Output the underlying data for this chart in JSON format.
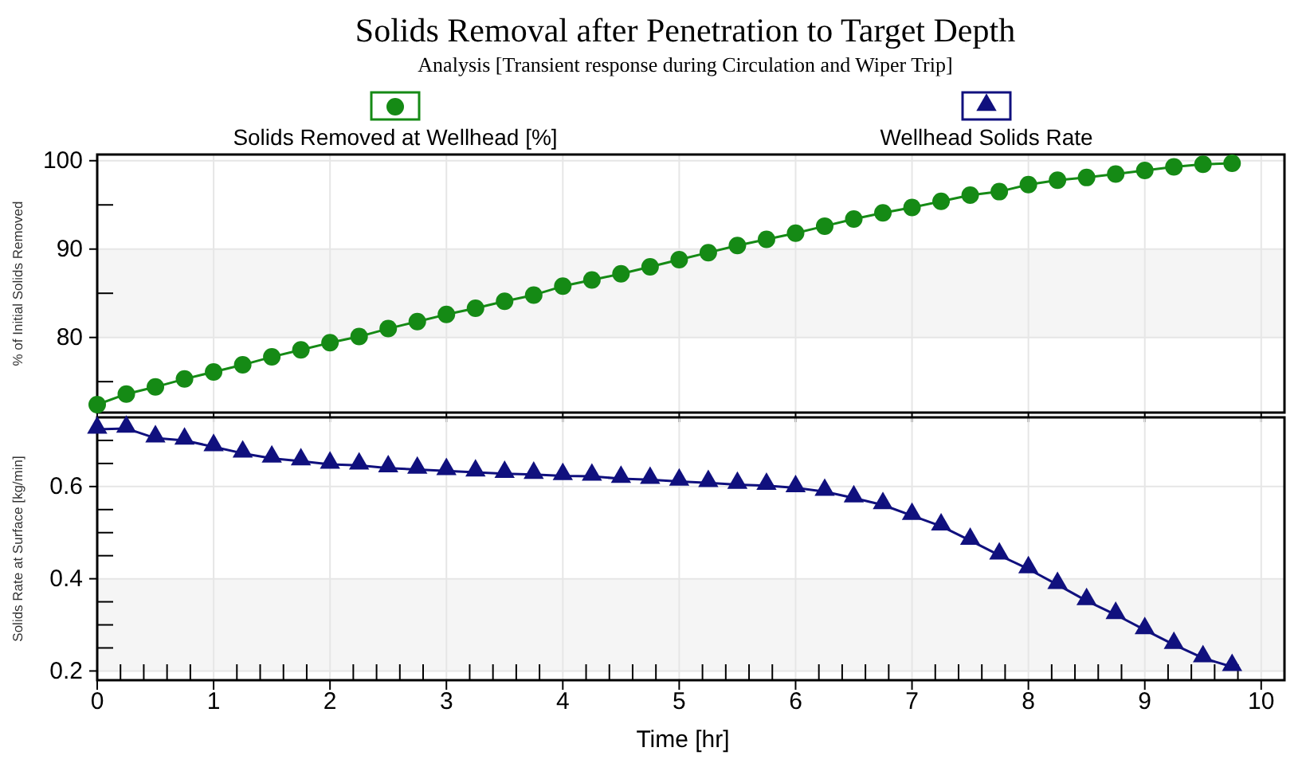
{
  "chart_data": [
    {
      "type": "line",
      "title": "Solids Removal after Penetration to Target Depth",
      "subtitle": "Analysis [Transient response during Circulation and Wiper Trip]",
      "ylabel": "% of Initial Solids Removed",
      "x": [
        0,
        0.25,
        0.5,
        0.75,
        1,
        1.25,
        1.5,
        1.75,
        2,
        2.25,
        2.5,
        2.75,
        3,
        3.25,
        3.5,
        3.75,
        4,
        4.25,
        4.5,
        4.75,
        5,
        5.25,
        5.5,
        5.75,
        6,
        6.25,
        6.5,
        6.75,
        7,
        7.25,
        7.5,
        7.75,
        8,
        8.25,
        8.5,
        8.75,
        9,
        9.25,
        9.5,
        9.75
      ],
      "series": [
        {
          "name": "Solids Removed at Wellhead [%]",
          "color": "#158a15",
          "marker": "circle",
          "values": [
            72.4,
            73.6,
            74.4,
            75.3,
            76.1,
            76.9,
            77.8,
            78.6,
            79.4,
            80.1,
            81.0,
            81.8,
            82.6,
            83.3,
            84.1,
            84.8,
            85.8,
            86.5,
            87.2,
            88.0,
            88.8,
            89.6,
            90.4,
            91.1,
            91.8,
            92.6,
            93.4,
            94.1,
            94.7,
            95.4,
            96.1,
            96.5,
            97.3,
            97.8,
            98.1,
            98.5,
            98.9,
            99.3,
            99.6,
            99.7
          ]
        }
      ],
      "xlim": [
        0,
        10.2
      ],
      "xticks": [
        0,
        1,
        2,
        3,
        4,
        5,
        6,
        7,
        8,
        9,
        10
      ],
      "ylim": [
        71.5,
        100.7
      ],
      "yticks": [
        {
          "value": 75,
          "label": null
        },
        80,
        {
          "value": 85,
          "label": null
        },
        90,
        {
          "value": 95,
          "label": null
        },
        100
      ],
      "grid": true,
      "tick_labels": "y",
      "legend": "top left"
    },
    {
      "type": "line",
      "xlabel": "Time [hr]",
      "ylabel": "Solids Rate at Surface [kg/min]",
      "x": [
        0,
        0.25,
        0.5,
        0.75,
        1,
        1.25,
        1.5,
        1.75,
        2,
        2.25,
        2.5,
        2.75,
        3,
        3.25,
        3.5,
        3.75,
        4,
        4.25,
        4.5,
        4.75,
        5,
        5.25,
        5.5,
        5.75,
        6,
        6.25,
        6.5,
        6.75,
        7,
        7.25,
        7.5,
        7.75,
        8,
        8.25,
        8.5,
        8.75,
        9,
        9.25,
        9.5,
        9.75
      ],
      "series": [
        {
          "name": "Wellhead Solids Rate",
          "color": "#10107e",
          "marker": "triangle",
          "values": [
            0.724,
            0.726,
            0.705,
            0.7,
            0.686,
            0.672,
            0.661,
            0.655,
            0.648,
            0.646,
            0.64,
            0.637,
            0.634,
            0.631,
            0.628,
            0.626,
            0.623,
            0.622,
            0.617,
            0.615,
            0.611,
            0.608,
            0.604,
            0.602,
            0.597,
            0.589,
            0.575,
            0.56,
            0.537,
            0.514,
            0.483,
            0.451,
            0.421,
            0.387,
            0.352,
            0.322,
            0.289,
            0.257,
            0.228,
            0.209
          ]
        }
      ],
      "xlim": [
        0,
        10.2
      ],
      "xticks": [
        0,
        {
          "value": 0.2,
          "label": null
        },
        {
          "value": 0.4,
          "label": null
        },
        {
          "value": 0.6,
          "label": null
        },
        {
          "value": 0.8,
          "label": null
        },
        1,
        {
          "value": 1.2,
          "label": null
        },
        {
          "value": 1.4,
          "label": null
        },
        {
          "value": 1.6,
          "label": null
        },
        {
          "value": 1.8,
          "label": null
        },
        2,
        {
          "value": 2.2,
          "label": null
        },
        {
          "value": 2.4,
          "label": null
        },
        {
          "value": 2.6,
          "label": null
        },
        {
          "value": 2.8,
          "label": null
        },
        3,
        {
          "value": 3.2,
          "label": null
        },
        {
          "value": 3.4,
          "label": null
        },
        {
          "value": 3.6,
          "label": null
        },
        {
          "value": 3.8,
          "label": null
        },
        4,
        {
          "value": 4.2,
          "label": null
        },
        {
          "value": 4.4,
          "label": null
        },
        {
          "value": 4.6,
          "label": null
        },
        {
          "value": 4.8,
          "label": null
        },
        5,
        {
          "value": 5.2,
          "label": null
        },
        {
          "value": 5.4,
          "label": null
        },
        {
          "value": 5.6,
          "label": null
        },
        {
          "value": 5.8,
          "label": null
        },
        6,
        {
          "value": 6.2,
          "label": null
        },
        {
          "value": 6.4,
          "label": null
        },
        {
          "value": 6.6,
          "label": null
        },
        {
          "value": 6.8,
          "label": null
        },
        7,
        {
          "value": 7.2,
          "label": null
        },
        {
          "value": 7.4,
          "label": null
        },
        {
          "value": 7.6,
          "label": null
        },
        {
          "value": 7.8,
          "label": null
        },
        8,
        {
          "value": 8.2,
          "label": null
        },
        {
          "value": 8.4,
          "label": null
        },
        {
          "value": 8.6,
          "label": null
        },
        {
          "value": 8.8,
          "label": null
        },
        9,
        {
          "value": 9.2,
          "label": null
        },
        {
          "value": 9.4,
          "label": null
        },
        {
          "value": 9.6,
          "label": null
        },
        {
          "value": 9.8,
          "label": null
        },
        10
      ],
      "ylim": [
        0.18,
        0.75
      ],
      "yticks": [
        0.2,
        {
          "value": 0.25,
          "label": null
        },
        {
          "value": 0.3,
          "label": null
        },
        {
          "value": 0.35,
          "label": null
        },
        0.4,
        {
          "value": 0.45,
          "label": null
        },
        {
          "value": 0.5,
          "label": null
        },
        {
          "value": 0.55,
          "label": null
        },
        0.6,
        {
          "value": 0.65,
          "label": null
        },
        {
          "value": 0.7,
          "label": null
        }
      ],
      "grid": true,
      "legend": "top right"
    }
  ]
}
